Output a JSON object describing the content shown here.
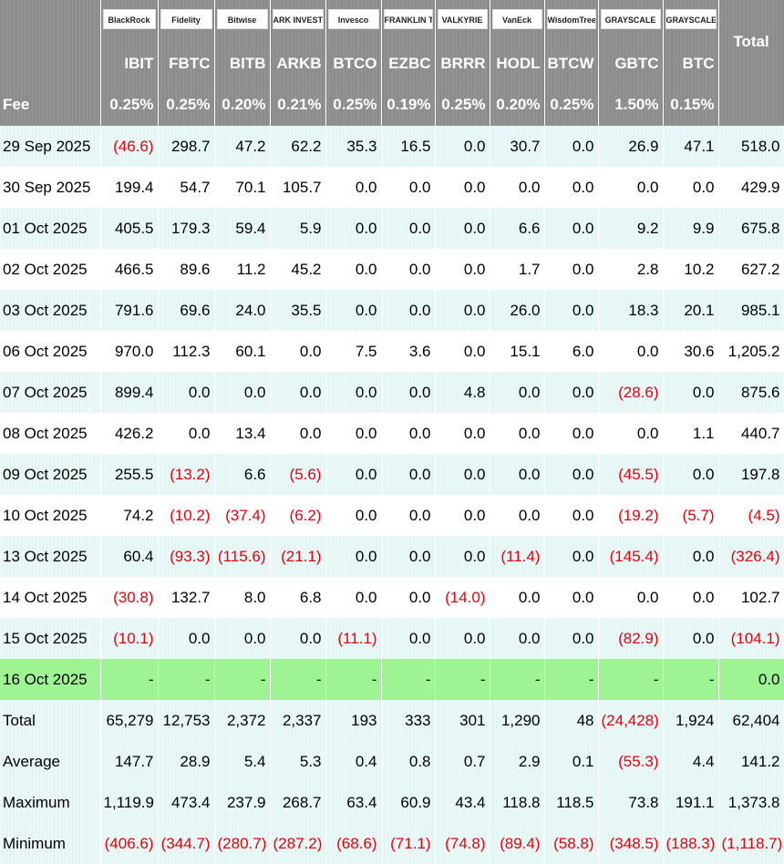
{
  "table": {
    "logos": [
      "BlackRock",
      "Fidelity",
      "Bitwise",
      "ARK INVEST",
      "Invesco",
      "FRANKLIN TEMPLETON",
      "VALKYRIE",
      "VanEck",
      "WisdomTree",
      "GRAYSCALE",
      "GRAYSCALE"
    ],
    "total_label": "Total",
    "tickers": [
      "IBIT",
      "FBTC",
      "BITB",
      "ARKB",
      "BTCO",
      "EZBC",
      "BRRR",
      "HODL",
      "BTCW",
      "GBTC",
      "BTC"
    ],
    "fee_label": "Fee",
    "fees": [
      "0.25%",
      "0.25%",
      "0.20%",
      "0.21%",
      "0.25%",
      "0.19%",
      "0.25%",
      "0.20%",
      "0.25%",
      "1.50%",
      "0.15%"
    ],
    "rows": [
      {
        "label": "29 Sep 2025",
        "values": [
          "(46.6)",
          "298.7",
          "47.2",
          "62.2",
          "35.3",
          "16.5",
          "0.0",
          "30.7",
          "0.0",
          "26.9",
          "47.1",
          "518.0"
        ]
      },
      {
        "label": "30 Sep 2025",
        "values": [
          "199.4",
          "54.7",
          "70.1",
          "105.7",
          "0.0",
          "0.0",
          "0.0",
          "0.0",
          "0.0",
          "0.0",
          "0.0",
          "429.9"
        ]
      },
      {
        "label": "01 Oct 2025",
        "values": [
          "405.5",
          "179.3",
          "59.4",
          "5.9",
          "0.0",
          "0.0",
          "0.0",
          "6.6",
          "0.0",
          "9.2",
          "9.9",
          "675.8"
        ]
      },
      {
        "label": "02 Oct 2025",
        "values": [
          "466.5",
          "89.6",
          "11.2",
          "45.2",
          "0.0",
          "0.0",
          "0.0",
          "1.7",
          "0.0",
          "2.8",
          "10.2",
          "627.2"
        ]
      },
      {
        "label": "03 Oct 2025",
        "values": [
          "791.6",
          "69.6",
          "24.0",
          "35.5",
          "0.0",
          "0.0",
          "0.0",
          "26.0",
          "0.0",
          "18.3",
          "20.1",
          "985.1"
        ]
      },
      {
        "label": "06 Oct 2025",
        "values": [
          "970.0",
          "112.3",
          "60.1",
          "0.0",
          "7.5",
          "3.6",
          "0.0",
          "15.1",
          "6.0",
          "0.0",
          "30.6",
          "1,205.2"
        ]
      },
      {
        "label": "07 Oct 2025",
        "values": [
          "899.4",
          "0.0",
          "0.0",
          "0.0",
          "0.0",
          "0.0",
          "4.8",
          "0.0",
          "0.0",
          "(28.6)",
          "0.0",
          "875.6"
        ]
      },
      {
        "label": "08 Oct 2025",
        "values": [
          "426.2",
          "0.0",
          "13.4",
          "0.0",
          "0.0",
          "0.0",
          "0.0",
          "0.0",
          "0.0",
          "0.0",
          "1.1",
          "440.7"
        ]
      },
      {
        "label": "09 Oct 2025",
        "values": [
          "255.5",
          "(13.2)",
          "6.6",
          "(5.6)",
          "0.0",
          "0.0",
          "0.0",
          "0.0",
          "0.0",
          "(45.5)",
          "0.0",
          "197.8"
        ]
      },
      {
        "label": "10 Oct 2025",
        "values": [
          "74.2",
          "(10.2)",
          "(37.4)",
          "(6.2)",
          "0.0",
          "0.0",
          "0.0",
          "0.0",
          "0.0",
          "(19.2)",
          "(5.7)",
          "(4.5)"
        ]
      },
      {
        "label": "13 Oct 2025",
        "values": [
          "60.4",
          "(93.3)",
          "(115.6)",
          "(21.1)",
          "0.0",
          "0.0",
          "0.0",
          "(11.4)",
          "0.0",
          "(145.4)",
          "0.0",
          "(326.4)"
        ]
      },
      {
        "label": "14 Oct 2025",
        "values": [
          "(30.8)",
          "132.7",
          "8.0",
          "6.8",
          "0.0",
          "0.0",
          "(14.0)",
          "0.0",
          "0.0",
          "0.0",
          "0.0",
          "102.7"
        ]
      },
      {
        "label": "15 Oct 2025",
        "values": [
          "(10.1)",
          "0.0",
          "0.0",
          "0.0",
          "(11.1)",
          "0.0",
          "0.0",
          "0.0",
          "0.0",
          "(82.9)",
          "0.0",
          "(104.1)"
        ]
      },
      {
        "label": "16 Oct 2025",
        "values": [
          "-",
          "-",
          "-",
          "-",
          "-",
          "-",
          "-",
          "-",
          "-",
          "-",
          "-",
          "0.0"
        ]
      },
      {
        "label": "Total",
        "values": [
          "65,279",
          "12,753",
          "2,372",
          "2,337",
          "193",
          "333",
          "301",
          "1,290",
          "48",
          "(24,428)",
          "1,924",
          "62,404"
        ]
      },
      {
        "label": "Average",
        "values": [
          "147.7",
          "28.9",
          "5.4",
          "5.3",
          "0.4",
          "0.8",
          "0.7",
          "2.9",
          "0.1",
          "(55.3)",
          "4.4",
          "141.2"
        ]
      },
      {
        "label": "Maximum",
        "values": [
          "1,119.9",
          "473.4",
          "237.9",
          "268.7",
          "63.4",
          "60.9",
          "43.4",
          "118.8",
          "118.5",
          "73.8",
          "191.1",
          "1,373.8"
        ]
      },
      {
        "label": "Minimum",
        "values": [
          "(406.6)",
          "(344.7)",
          "(280.7)",
          "(287.2)",
          "(68.6)",
          "(71.1)",
          "(74.8)",
          "(89.4)",
          "(58.8)",
          "(348.5)",
          "(188.3)",
          "(1,118.7)"
        ]
      }
    ]
  }
}
